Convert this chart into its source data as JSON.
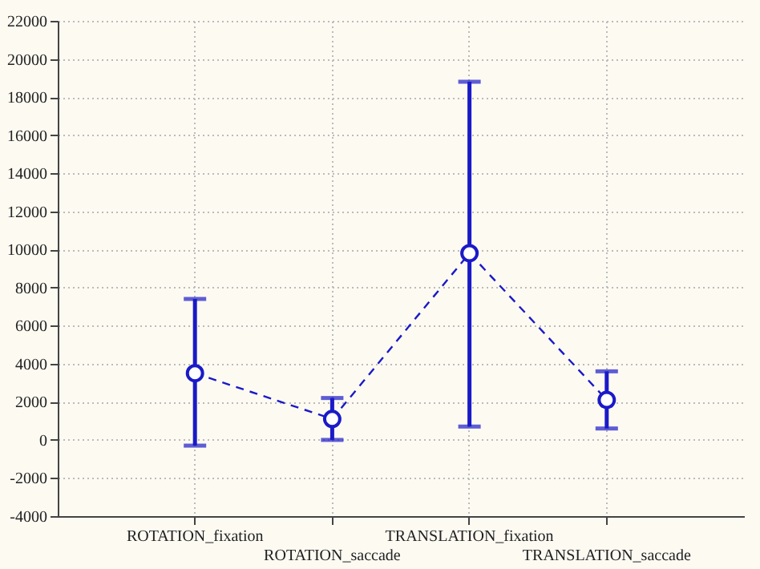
{
  "chart_data": {
    "type": "line",
    "categories": [
      "ROTATION_fixation",
      "ROTATION_saccade",
      "TRANSLATION_fixation",
      "TRANSLATION_saccade"
    ],
    "series": [
      {
        "color": "#1a1ac8",
        "values": [
          3500,
          1100,
          9800,
          2100
        ],
        "errors": [
          [
            -300,
            7400
          ],
          [
            0,
            2200
          ],
          [
            700,
            18800
          ],
          [
            600,
            3600
          ]
        ]
      }
    ],
    "ylim": [
      -4000,
      22000
    ],
    "yticks": [
      -4000,
      -2000,
      0,
      2000,
      4000,
      6000,
      8000,
      10000,
      12000,
      14000,
      16000,
      18000,
      20000,
      22000
    ],
    "grid": true,
    "marker": "circle",
    "line_style": "dashed",
    "legend": false
  }
}
